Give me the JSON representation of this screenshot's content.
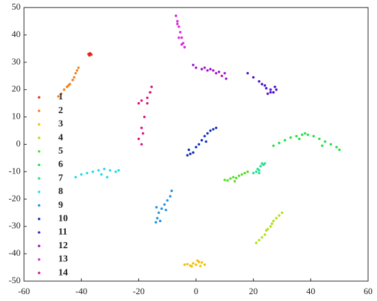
{
  "chart_data": {
    "type": "scatter",
    "xlim": [
      -60,
      60
    ],
    "ylim": [
      -50,
      50
    ],
    "xticks": [
      -60,
      -40,
      -20,
      0,
      20,
      40,
      60
    ],
    "yticks": [
      -50,
      -40,
      -30,
      -20,
      -10,
      0,
      10,
      20,
      30,
      40,
      50
    ],
    "legend": "left",
    "series": [
      {
        "name": "1",
        "color": "#e8261a",
        "x": [
          -37.5,
          -37,
          -36.5,
          -37.2,
          -36.8,
          -37
        ],
        "y": [
          33,
          33.3,
          32.8,
          32.5,
          33.1,
          32.9
        ]
      },
      {
        "name": "2",
        "color": "#f08020",
        "x": [
          -48,
          -47,
          -46,
          -45,
          -44.5,
          -44,
          -43,
          -42.5,
          -42,
          -41.5,
          -41
        ],
        "y": [
          17.5,
          18.5,
          20,
          21,
          21.5,
          22,
          23.5,
          24.5,
          26,
          27,
          28
        ]
      },
      {
        "name": "3",
        "color": "#f5c000",
        "x": [
          -4,
          -3,
          -2,
          -1,
          0,
          1,
          1.5,
          2,
          3,
          0.5,
          -1.5
        ],
        "y": [
          -44,
          -43.8,
          -44.3,
          -43.5,
          -44,
          -43,
          -44.5,
          -43.2,
          -44,
          -42.5,
          -44.6
        ]
      },
      {
        "name": "4",
        "color": "#b0e010",
        "x": [
          21,
          22,
          23,
          24,
          25,
          26,
          27,
          28,
          29,
          30,
          24.5,
          26.5
        ],
        "y": [
          -36,
          -35,
          -34,
          -33,
          -31,
          -30,
          -28,
          -27,
          -26,
          -25,
          -31.5,
          -29
        ]
      },
      {
        "name": "5",
        "color": "#50e020",
        "x": [
          10,
          11,
          12,
          13,
          14,
          15,
          16,
          17,
          18,
          13.5
        ],
        "y": [
          -13,
          -13.2,
          -12.5,
          -12,
          -12.3,
          -11.5,
          -11,
          -10.5,
          -10,
          -13.5
        ]
      },
      {
        "name": "6",
        "color": "#20e040",
        "x": [
          27,
          29,
          31,
          33,
          35,
          37,
          38,
          39,
          41,
          43,
          45,
          47,
          49,
          50,
          36,
          44
        ],
        "y": [
          -0.5,
          0.5,
          1.5,
          2.5,
          3,
          3.5,
          4,
          3.5,
          3,
          2,
          1,
          0,
          -1,
          -2,
          2,
          -0.5
        ]
      },
      {
        "name": "7",
        "color": "#20e090",
        "x": [
          20,
          21,
          22,
          22.5,
          23,
          23.5,
          24,
          22,
          21.5
        ],
        "y": [
          -10.5,
          -10,
          -9.5,
          -8,
          -7,
          -7.5,
          -7,
          -10.5,
          -9
        ]
      },
      {
        "name": "8",
        "color": "#20d8f0",
        "x": [
          -42,
          -40,
          -38,
          -36,
          -34,
          -32,
          -30,
          -28,
          -27,
          -33,
          -31
        ],
        "y": [
          -12,
          -11,
          -10.5,
          -10,
          -9.5,
          -9,
          -9.5,
          -10,
          -9.5,
          -11,
          -12
        ]
      },
      {
        "name": "9",
        "color": "#2090e0",
        "x": [
          -14,
          -13.5,
          -13,
          -12,
          -11,
          -10,
          -9,
          -8.5,
          -12.5,
          -10.5,
          -13.8
        ],
        "y": [
          -28.5,
          -27,
          -25,
          -23.5,
          -22,
          -20.5,
          -19,
          -17,
          -28,
          -24,
          -23
        ]
      },
      {
        "name": "10",
        "color": "#1030c0",
        "x": [
          -3,
          -2,
          -1,
          0,
          1,
          2,
          3,
          4,
          5,
          6,
          7,
          -2.5,
          3.5
        ],
        "y": [
          -4,
          -3.5,
          -3,
          -1,
          0,
          1.5,
          3,
          4,
          5,
          5.5,
          6,
          -2,
          1
        ]
      },
      {
        "name": "11",
        "color": "#5010d0",
        "x": [
          18,
          20,
          22,
          24,
          26,
          27,
          28,
          27.5,
          26,
          25,
          23,
          24.5
        ],
        "y": [
          26,
          24.5,
          23,
          21.5,
          20,
          19,
          20,
          21,
          19,
          18.5,
          22,
          20.5
        ]
      },
      {
        "name": "12",
        "color": "#a010d0",
        "x": [
          -1,
          0,
          2,
          4,
          6,
          8,
          10,
          9,
          7,
          5,
          3,
          10.5
        ],
        "y": [
          29,
          28,
          27.5,
          27,
          27,
          26.5,
          26,
          25,
          26,
          27.5,
          28,
          24
        ]
      },
      {
        "name": "13",
        "color": "#e020e0",
        "x": [
          -7,
          -6.5,
          -6,
          -5.5,
          -5,
          -4.5,
          -4,
          -5,
          -6,
          -6.5
        ],
        "y": [
          47,
          45,
          43,
          41,
          39,
          37,
          35.5,
          36.5,
          39,
          44
        ]
      },
      {
        "name": "14",
        "color": "#e01080",
        "x": [
          -20,
          -19,
          -17,
          -16,
          -15.5,
          -16,
          -17,
          -18,
          -19,
          -20,
          -19,
          -18.5
        ],
        "y": [
          15,
          16,
          17,
          19,
          21,
          19,
          15,
          10,
          6,
          2,
          0,
          4
        ]
      }
    ]
  }
}
